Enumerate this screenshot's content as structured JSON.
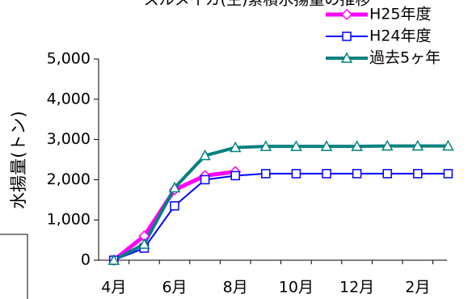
{
  "chart_data": {
    "type": "line",
    "title": "スルメイカ(生)累積水揚量の推移",
    "y_label": "水揚量(トン)",
    "categories": [
      "4月",
      null,
      "6月",
      null,
      "8月",
      null,
      "10月",
      null,
      "12月",
      null,
      "2月",
      null
    ],
    "series": [
      {
        "name": "H25年度",
        "color": "#ff00ff",
        "marker": "diamond",
        "values": [
          0,
          600,
          1750,
          2100,
          2200,
          null,
          null,
          null,
          null,
          null,
          null,
          null
        ]
      },
      {
        "name": "H24年度",
        "color": "#0000ff",
        "marker": "square",
        "values": [
          0,
          300,
          1350,
          2000,
          2100,
          2150,
          2150,
          2150,
          2150,
          2150,
          2150,
          2150
        ]
      },
      {
        "name": "過去5ヶ年",
        "color": "#008080",
        "marker": "triangle",
        "values": [
          0,
          400,
          1800,
          2600,
          2800,
          2830,
          2830,
          2830,
          2830,
          2840,
          2840,
          2840
        ]
      }
    ],
    "ylim": [
      0,
      5000
    ],
    "yticks": [
      0,
      {
        "value": 1000,
        "label": "1,000"
      },
      {
        "value": 2000,
        "label": "2,000"
      },
      {
        "value": 3000,
        "label": "3,000"
      },
      {
        "value": 4000,
        "label": "4,000"
      },
      {
        "value": 5000,
        "label": "5,000"
      }
    ],
    "legend": "top-right"
  }
}
